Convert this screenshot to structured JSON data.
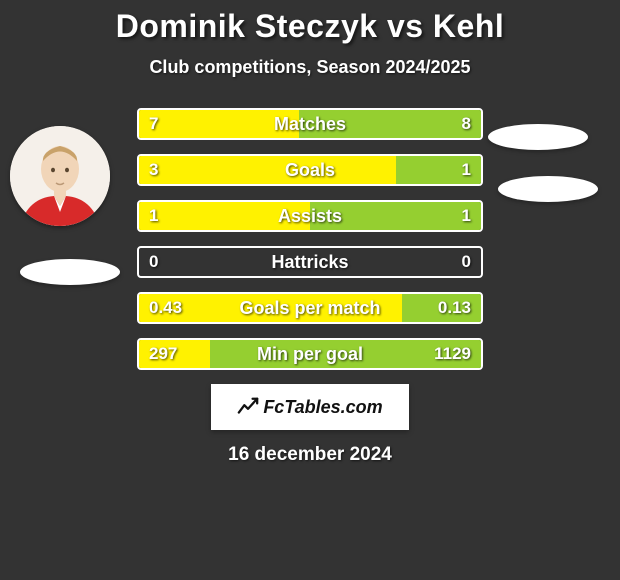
{
  "header": {
    "title": "Dominik Steczyk vs Kehl",
    "subtitle": "Club competitions, Season 2024/2025"
  },
  "colors": {
    "background": "#333333",
    "left_fill": "#fff200",
    "right_fill": "#95cf30",
    "border": "#ffffff",
    "text": "#ffffff"
  },
  "fonts": {
    "title_size": 32,
    "subtitle_size": 18,
    "bar_label_size": 18,
    "bar_value_size": 17,
    "date_size": 19
  },
  "bars": [
    {
      "label": "Matches",
      "left_value": "7",
      "right_value": "8",
      "left_pct": 46.7,
      "right_pct": 53.3
    },
    {
      "label": "Goals",
      "left_value": "3",
      "right_value": "1",
      "left_pct": 75.0,
      "right_pct": 25.0
    },
    {
      "label": "Assists",
      "left_value": "1",
      "right_value": "1",
      "left_pct": 50.0,
      "right_pct": 50.0
    },
    {
      "label": "Hattricks",
      "left_value": "0",
      "right_value": "0",
      "left_pct": 0.0,
      "right_pct": 0.0
    },
    {
      "label": "Goals per match",
      "left_value": "0.43",
      "right_value": "0.13",
      "left_pct": 76.8,
      "right_pct": 23.2
    },
    {
      "label": "Min per goal",
      "left_value": "297",
      "right_value": "1129",
      "left_pct": 20.8,
      "right_pct": 79.2
    }
  ],
  "brand": {
    "text": "FcTables.com"
  },
  "date": "16 december 2024",
  "icons": {
    "avatar_left": "player-photo",
    "ellipse_left": "club-badge-left",
    "ellipse_right_1": "club-badge-right-1",
    "ellipse_right_2": "club-badge-right-2",
    "brand_icon": "chart-line-icon"
  }
}
